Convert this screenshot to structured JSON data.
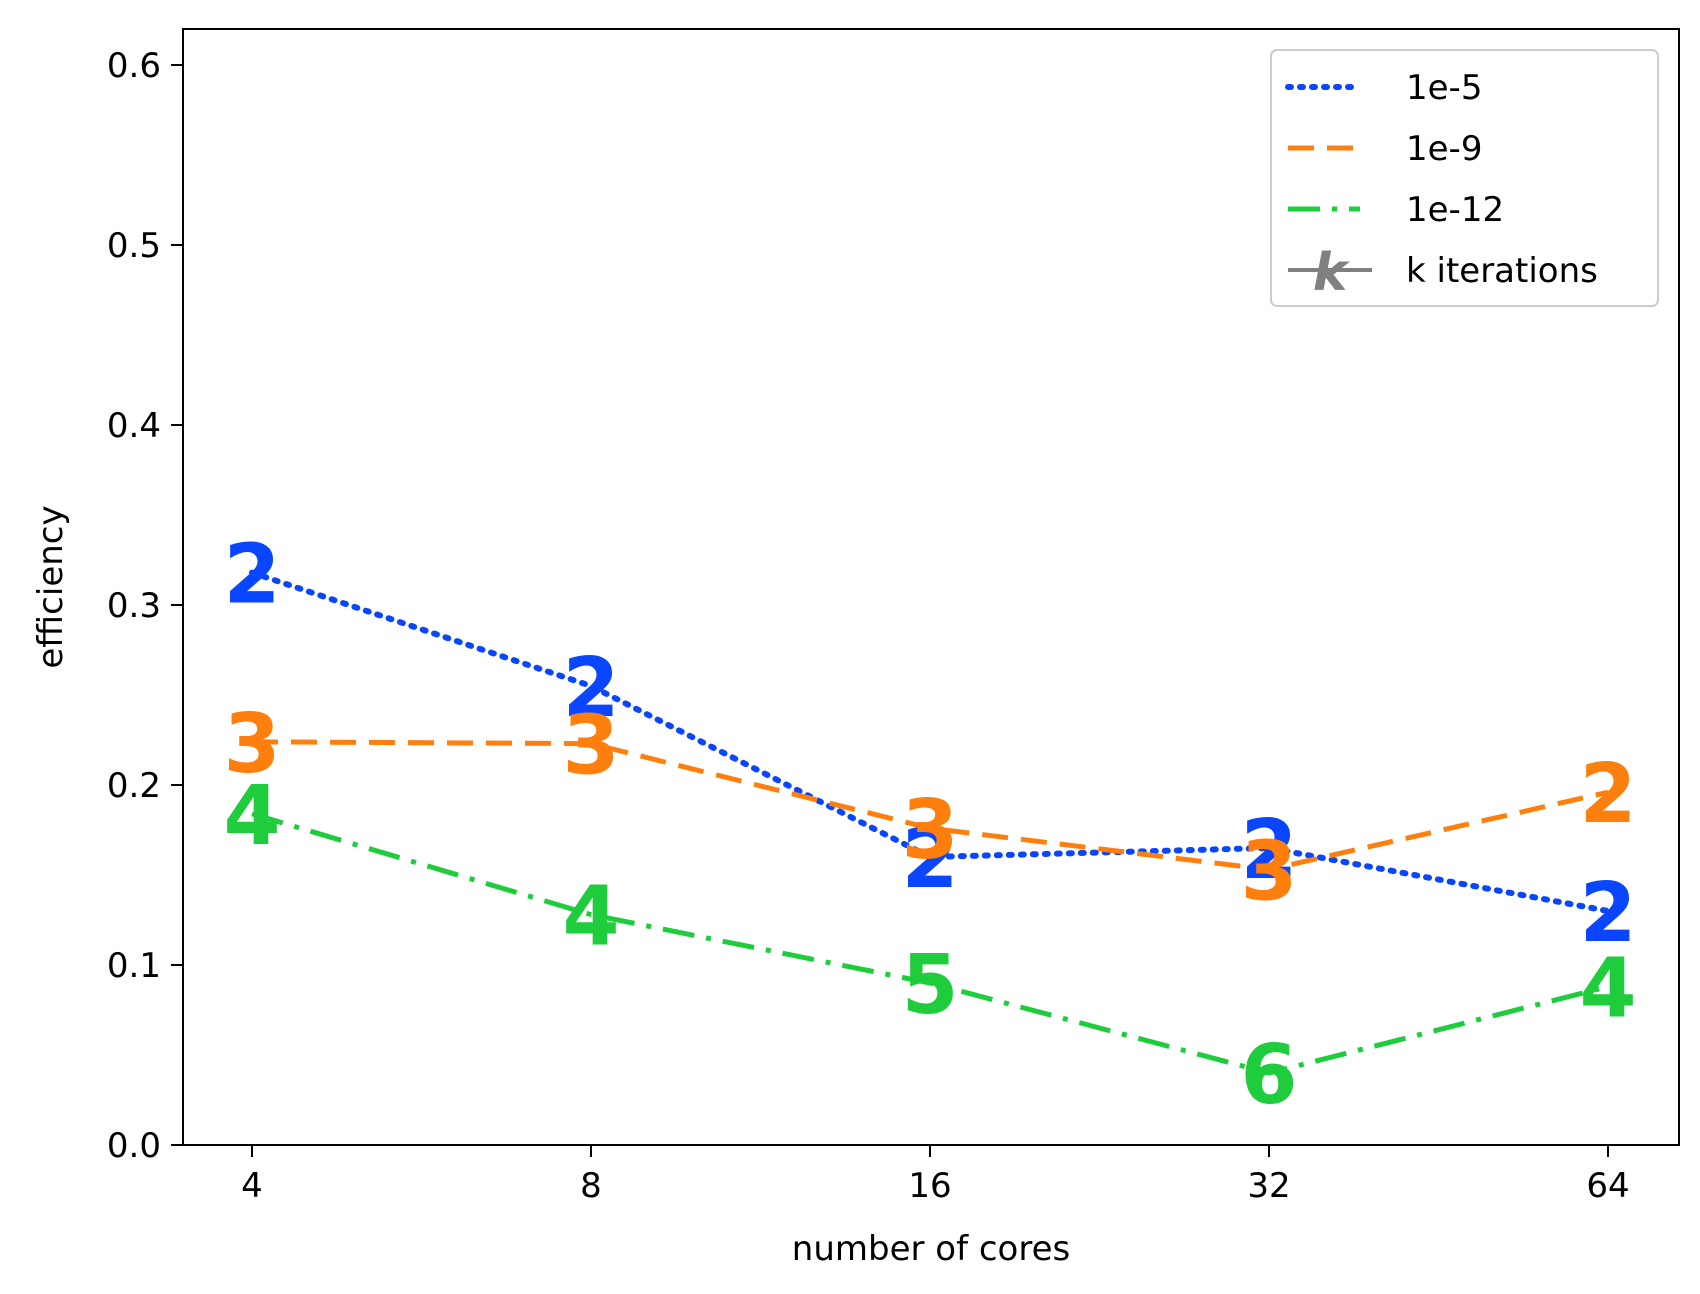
{
  "chart_data": {
    "type": "line",
    "xlabel": "number of cores",
    "ylabel": "efficiency",
    "x": [
      4,
      8,
      16,
      32,
      64
    ],
    "x_ticks": [
      "4",
      "8",
      "16",
      "32",
      "64"
    ],
    "x_scale": "log2",
    "ylim": [
      0.0,
      0.62
    ],
    "y_ticks": [
      "0.0",
      "0.1",
      "0.2",
      "0.3",
      "0.4",
      "0.5",
      "0.6"
    ],
    "grid": false,
    "legend_position": "top-right",
    "series": [
      {
        "name": "1e-5",
        "color": "#0a46ff",
        "linestyle": "dotted",
        "values": [
          0.318,
          0.255,
          0.16,
          0.165,
          0.13
        ],
        "iterations": [
          "2",
          "2",
          "2",
          "2",
          "2"
        ]
      },
      {
        "name": "1e-9",
        "color": "#ff7f0e",
        "linestyle": "dashed",
        "values": [
          0.224,
          0.223,
          0.176,
          0.153,
          0.196
        ],
        "iterations": [
          "3",
          "3",
          "3",
          "3",
          "2"
        ]
      },
      {
        "name": "1e-12",
        "color": "#1fcc3c",
        "linestyle": "dashdot",
        "values": [
          0.184,
          0.128,
          0.09,
          0.04,
          0.088
        ],
        "iterations": [
          "4",
          "4",
          "5",
          "6",
          "4"
        ]
      }
    ],
    "legend_extra": {
      "label": "k iterations",
      "marker": "k",
      "color": "#808080"
    }
  }
}
